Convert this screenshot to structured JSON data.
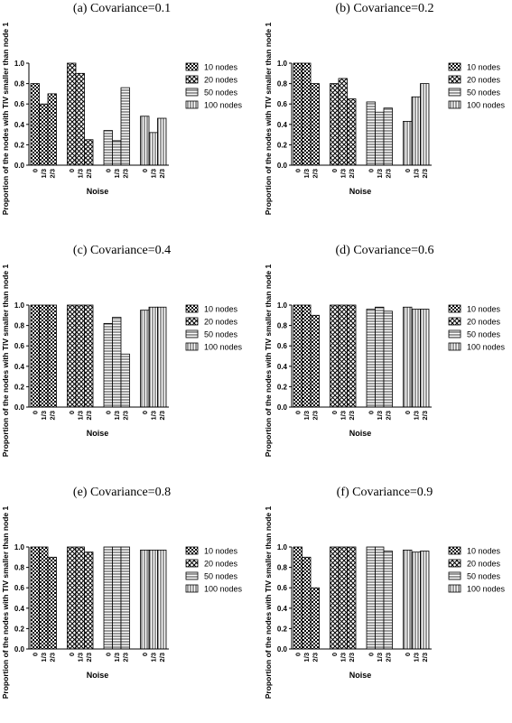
{
  "chart_data": [
    {
      "type": "bar",
      "title": "(a) Covariance=0.1",
      "xlabel": "Noise",
      "ylabel": "Proportion of the nodes with TIV smaller than node 1",
      "ylim": [
        0,
        1.0
      ],
      "yticks": [
        "0.0",
        "0.2",
        "0.4",
        "0.6",
        "0.8",
        "1.0"
      ],
      "categories": [
        "0",
        "1/3",
        "2/3"
      ],
      "series": [
        {
          "name": "10 nodes",
          "values": [
            0.8,
            0.6,
            0.7
          ]
        },
        {
          "name": "20 nodes",
          "values": [
            1.0,
            0.9,
            0.25
          ]
        },
        {
          "name": "50 nodes",
          "values": [
            0.34,
            0.24,
            0.76
          ]
        },
        {
          "name": "100 nodes",
          "values": [
            0.48,
            0.32,
            0.46
          ]
        }
      ]
    },
    {
      "type": "bar",
      "title": "(b) Covariance=0.2",
      "xlabel": "Noise",
      "ylabel": "Proportion of the nodes with TIV smaller than node 1",
      "ylim": [
        0,
        1.0
      ],
      "yticks": [
        "0.0",
        "0.2",
        "0.4",
        "0.6",
        "0.8",
        "1.0"
      ],
      "categories": [
        "0",
        "1/3",
        "2/3"
      ],
      "series": [
        {
          "name": "10 nodes",
          "values": [
            1.0,
            1.0,
            0.8
          ]
        },
        {
          "name": "20 nodes",
          "values": [
            0.8,
            0.85,
            0.65
          ]
        },
        {
          "name": "50 nodes",
          "values": [
            0.62,
            0.52,
            0.56
          ]
        },
        {
          "name": "100 nodes",
          "values": [
            0.43,
            0.67,
            0.8
          ]
        }
      ]
    },
    {
      "type": "bar",
      "title": "(c) Covariance=0.4",
      "xlabel": "Noise",
      "ylabel": "Proportion of the nodes with TIV smaller than node 1",
      "ylim": [
        0,
        1.0
      ],
      "yticks": [
        "0.0",
        "0.2",
        "0.4",
        "0.6",
        "0.8",
        "1.0"
      ],
      "categories": [
        "0",
        "1/3",
        "2/3"
      ],
      "series": [
        {
          "name": "10 nodes",
          "values": [
            1.0,
            1.0,
            1.0
          ]
        },
        {
          "name": "20 nodes",
          "values": [
            1.0,
            1.0,
            1.0
          ]
        },
        {
          "name": "50 nodes",
          "values": [
            0.82,
            0.88,
            0.52
          ]
        },
        {
          "name": "100 nodes",
          "values": [
            0.95,
            0.98,
            0.98
          ]
        }
      ]
    },
    {
      "type": "bar",
      "title": "(d) Covariance=0.6",
      "xlabel": "Noise",
      "ylabel": "Proportion of the nodes with TIV smaller than node 1",
      "ylim": [
        0,
        1.0
      ],
      "yticks": [
        "0.0",
        "0.2",
        "0.4",
        "0.6",
        "0.8",
        "1.0"
      ],
      "categories": [
        "0",
        "1/3",
        "2/3"
      ],
      "series": [
        {
          "name": "10 nodes",
          "values": [
            1.0,
            1.0,
            0.9
          ]
        },
        {
          "name": "20 nodes",
          "values": [
            1.0,
            1.0,
            1.0
          ]
        },
        {
          "name": "50 nodes",
          "values": [
            0.96,
            0.98,
            0.94
          ]
        },
        {
          "name": "100 nodes",
          "values": [
            0.98,
            0.96,
            0.96
          ]
        }
      ]
    },
    {
      "type": "bar",
      "title": "(e) Covariance=0.8",
      "xlabel": "Noise",
      "ylabel": "Proportion of the nodes with TIV smaller than node 1",
      "ylim": [
        0,
        1.0
      ],
      "yticks": [
        "0.0",
        "0.2",
        "0.4",
        "0.6",
        "0.8",
        "1.0"
      ],
      "categories": [
        "0",
        "1/3",
        "2/3"
      ],
      "series": [
        {
          "name": "10 nodes",
          "values": [
            1.0,
            1.0,
            0.9
          ]
        },
        {
          "name": "20 nodes",
          "values": [
            1.0,
            1.0,
            0.95
          ]
        },
        {
          "name": "50 nodes",
          "values": [
            1.0,
            1.0,
            1.0
          ]
        },
        {
          "name": "100 nodes",
          "values": [
            0.97,
            0.97,
            0.97
          ]
        }
      ]
    },
    {
      "type": "bar",
      "title": "(f) Covariance=0.9",
      "xlabel": "Noise",
      "ylabel": "Proportion of the nodes with TIV smaller than node 1",
      "ylim": [
        0,
        1.0
      ],
      "yticks": [
        "0.0",
        "0.2",
        "0.4",
        "0.6",
        "0.8",
        "1.0"
      ],
      "categories": [
        "0",
        "1/3",
        "2/3"
      ],
      "series": [
        {
          "name": "10 nodes",
          "values": [
            1.0,
            0.9,
            0.6
          ]
        },
        {
          "name": "20 nodes",
          "values": [
            1.0,
            1.0,
            1.0
          ]
        },
        {
          "name": "50 nodes",
          "values": [
            1.0,
            1.0,
            0.96
          ]
        },
        {
          "name": "100 nodes",
          "values": [
            0.97,
            0.95,
            0.96
          ]
        }
      ]
    }
  ]
}
